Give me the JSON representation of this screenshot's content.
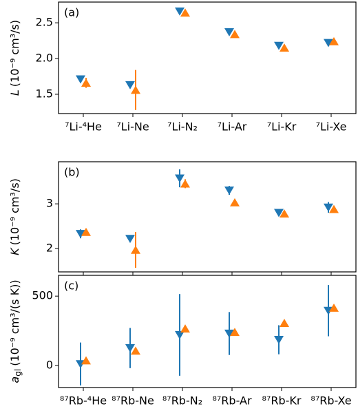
{
  "chart_data": [
    {
      "type": "errorbar",
      "panel_label": "(a)",
      "ylabel": {
        "symbol": "L",
        "unit": "(10⁻⁹ cm³/s)"
      },
      "categories": [
        "⁷Li-⁴He",
        "⁷Li-Ne",
        "⁷Li-N₂",
        "⁷Li-Ar",
        "⁷Li-Kr",
        "⁷Li-Xe"
      ],
      "ylim": [
        1.23,
        2.79
      ],
      "yticks": [
        1.5,
        {
          "value": 2,
          "label": "2.0"
        },
        2.5
      ],
      "series": [
        {
          "color": "#1f77b4",
          "marker": "down",
          "values": [
            1.71,
            1.63,
            2.66,
            2.37,
            2.18,
            2.22
          ],
          "errors": [
            0.03,
            0.02,
            0.02,
            0.02,
            0.02,
            0.02
          ]
        },
        {
          "color": "#ff7f0e",
          "marker": "up",
          "values": [
            1.66,
            1.56,
            2.64,
            2.34,
            2.15,
            2.24
          ],
          "errors": [
            0.07,
            0.28,
            0.02,
            0.02,
            0.02,
            0.02
          ]
        }
      ]
    },
    {
      "type": "errorbar",
      "panel_label": "(b)",
      "ylabel": {
        "symbol": "K",
        "unit": "(10⁻⁹ cm³/s)"
      },
      "ylim": [
        1.48,
        3.94
      ],
      "yticks": [
        2,
        3
      ],
      "series": [
        {
          "color": "#1f77b4",
          "marker": "down",
          "values": [
            2.33,
            2.22,
            3.57,
            3.3,
            2.8,
            2.92
          ],
          "errors": [
            0.1,
            0.07,
            0.2,
            0.1,
            0.05,
            0.12
          ]
        },
        {
          "color": "#ff7f0e",
          "marker": "up",
          "values": [
            2.37,
            1.97,
            3.45,
            3.03,
            2.78,
            2.88
          ],
          "errors": [
            0.03,
            0.4,
            0.1,
            0.03,
            0.03,
            0.05
          ]
        }
      ]
    },
    {
      "type": "errorbar",
      "panel_label": "(c)",
      "ylabel": {
        "symbol": "a",
        "subscript": "gl",
        "unit": "(10⁻⁹  cm³/(s K))"
      },
      "categories": [
        "⁸⁷Rb-⁴He",
        "⁸⁷Rb-Ne",
        "⁸⁷Rb-N₂",
        "⁸⁷Rb-Ar",
        "⁸⁷Rb-Kr",
        "⁸⁷Rb-Xe"
      ],
      "ylim": [
        -160,
        650
      ],
      "yticks": [
        0,
        500
      ],
      "series": [
        {
          "color": "#1f77b4",
          "marker": "down",
          "values": [
            10,
            125,
            220,
            230,
            185,
            395
          ],
          "errors": [
            155,
            145,
            295,
            155,
            105,
            185
          ]
        },
        {
          "color": "#ff7f0e",
          "marker": "up",
          "values": [
            35,
            105,
            265,
            240,
            305,
            415
          ],
          "errors": [
            8,
            8,
            8,
            8,
            8,
            8
          ]
        }
      ]
    }
  ]
}
